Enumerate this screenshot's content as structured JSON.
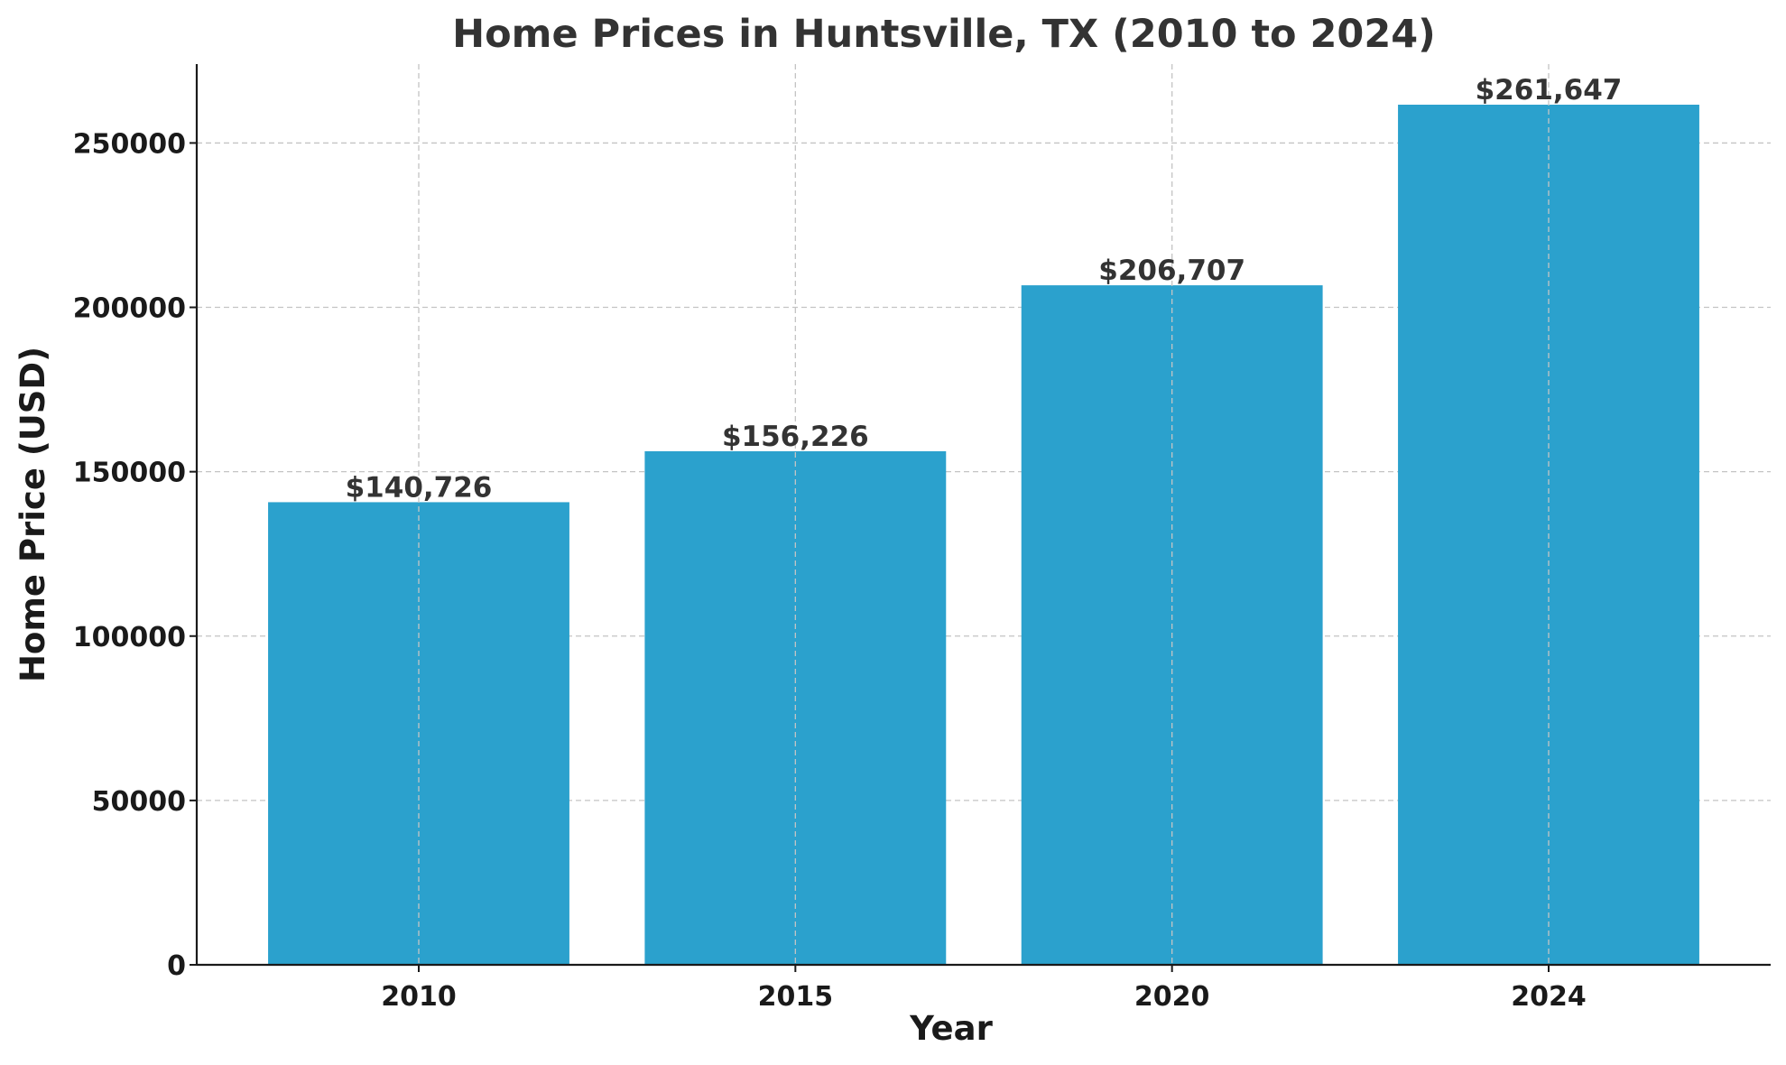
{
  "chart_data": {
    "type": "bar",
    "title": "Home Prices in Huntsville, TX (2010 to 2024)",
    "xlabel": "Year",
    "ylabel": "Home Price (USD)",
    "categories": [
      "2010",
      "2015",
      "2020",
      "2024"
    ],
    "values": [
      140726,
      156226,
      206707,
      261647
    ],
    "value_labels": [
      "$140,726",
      "$156,226",
      "$206,707",
      "$261,647"
    ],
    "ylim": [
      0,
      274000
    ],
    "yticks": [
      0,
      50000,
      100000,
      150000,
      200000,
      250000
    ],
    "ytick_labels": [
      "0",
      "50000",
      "100000",
      "150000",
      "200000",
      "250000"
    ],
    "grid": true,
    "legend": "none",
    "colors": {
      "bar": "#2ba1cd",
      "grid": "#c4c4c4",
      "axis": "#1a1a1a",
      "title": "#333333"
    }
  }
}
